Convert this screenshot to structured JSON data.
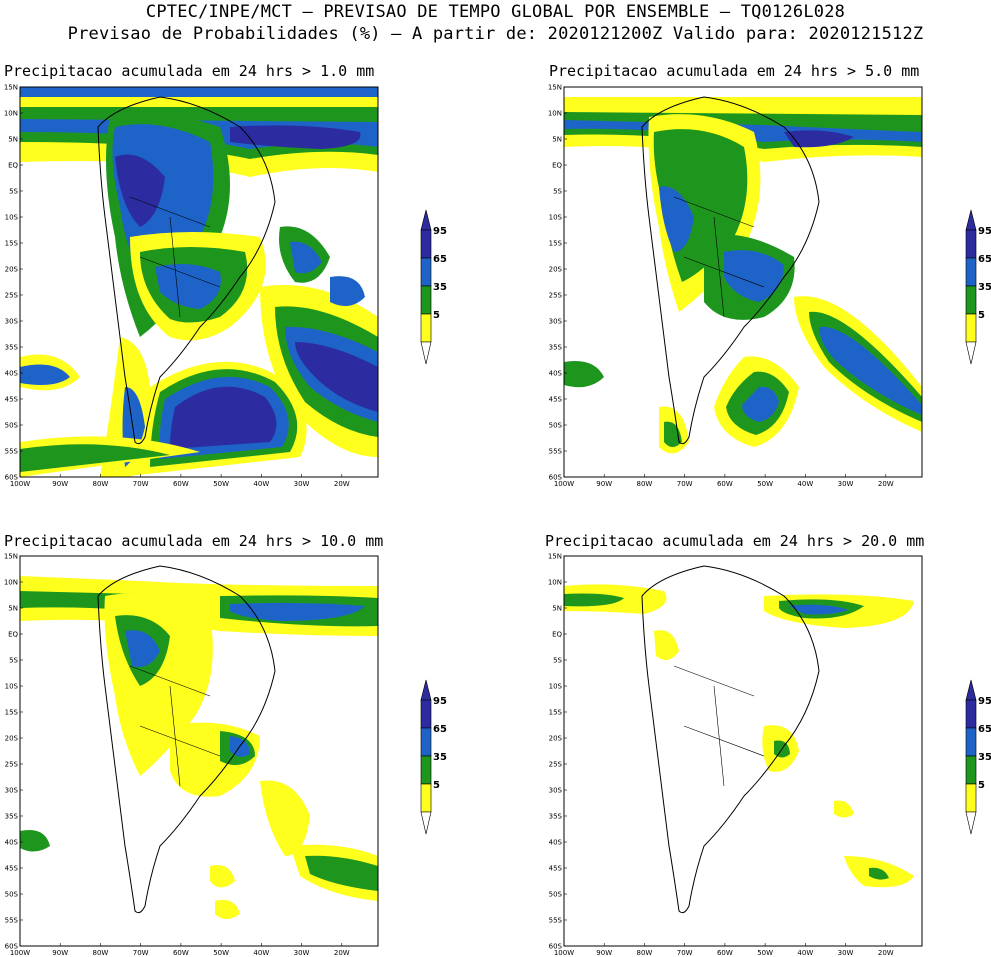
{
  "header": {
    "line1": "CPTEC/INPE/MCT – PREVISAO DE TEMPO GLOBAL POR ENSEMBLE – TQ0126L028",
    "line2": "Previsao de Probabilidades (%) –  A partir de: 2020121200Z  Valido para: 2020121512Z"
  },
  "panels": [
    {
      "title": "Precipitacao acumulada em 24 hrs > 1.0 mm"
    },
    {
      "title": "Precipitacao acumulada em 24 hrs > 5.0 mm"
    },
    {
      "title": "Precipitacao acumulada em 24 hrs > 10.0 mm"
    },
    {
      "title": "Precipitacao acumulada em 24 hrs > 20.0 mm"
    }
  ],
  "axes": {
    "lat_labels": [
      "15N",
      "10N",
      "5N",
      "EQ",
      "5S",
      "10S",
      "15S",
      "20S",
      "25S",
      "30S",
      "35S",
      "40S",
      "45S",
      "50S",
      "55S",
      "60S"
    ],
    "lon_labels": [
      "100W",
      "90W",
      "80W",
      "70W",
      "60W",
      "50W",
      "40W",
      "30W",
      "20W"
    ]
  },
  "legend": {
    "labels": [
      "95",
      "65",
      "35",
      "5"
    ],
    "colors": {
      "c95": "#2c2ca0",
      "c65": "#1e64c8",
      "c35": "#1e961e",
      "c5": "#ffff1e"
    }
  }
}
